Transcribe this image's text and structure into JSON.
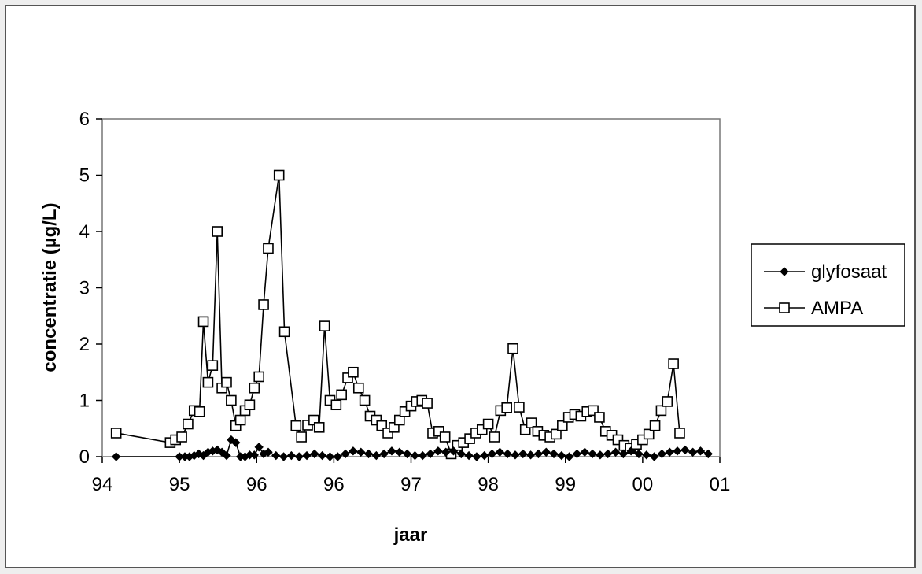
{
  "chart_data": {
    "type": "line",
    "xlabel": "jaar",
    "ylabel": "concentratie (µg/L)",
    "x_tick_labels": [
      "94",
      "95",
      "96",
      "96",
      "97",
      "98",
      "99",
      "00",
      "01"
    ],
    "y_ticks": [
      0,
      1,
      2,
      3,
      4,
      5,
      6
    ],
    "xlim": [
      0,
      8
    ],
    "ylim": [
      0,
      6
    ],
    "grid": false,
    "legend_position": "right",
    "series": [
      {
        "name": "glyfosaat",
        "marker": "diamond-filled",
        "color": "#000000",
        "points": [
          [
            0.18,
            0.0
          ],
          [
            1.0,
            0.0
          ],
          [
            1.07,
            0.0
          ],
          [
            1.13,
            0.0
          ],
          [
            1.19,
            0.02
          ],
          [
            1.25,
            0.05
          ],
          [
            1.31,
            0.02
          ],
          [
            1.37,
            0.08
          ],
          [
            1.43,
            0.1
          ],
          [
            1.49,
            0.12
          ],
          [
            1.55,
            0.08
          ],
          [
            1.61,
            0.02
          ],
          [
            1.67,
            0.3
          ],
          [
            1.73,
            0.25
          ],
          [
            1.79,
            0.0
          ],
          [
            1.85,
            0.0
          ],
          [
            1.91,
            0.03
          ],
          [
            1.97,
            0.03
          ],
          [
            2.03,
            0.17
          ],
          [
            2.09,
            0.05
          ],
          [
            2.15,
            0.08
          ],
          [
            2.25,
            0.02
          ],
          [
            2.35,
            0.0
          ],
          [
            2.45,
            0.02
          ],
          [
            2.55,
            0.0
          ],
          [
            2.65,
            0.02
          ],
          [
            2.75,
            0.05
          ],
          [
            2.85,
            0.02
          ],
          [
            2.95,
            0.0
          ],
          [
            3.05,
            0.0
          ],
          [
            3.15,
            0.05
          ],
          [
            3.25,
            0.1
          ],
          [
            3.35,
            0.08
          ],
          [
            3.45,
            0.05
          ],
          [
            3.55,
            0.02
          ],
          [
            3.65,
            0.05
          ],
          [
            3.75,
            0.1
          ],
          [
            3.85,
            0.08
          ],
          [
            3.95,
            0.05
          ],
          [
            4.05,
            0.02
          ],
          [
            4.15,
            0.02
          ],
          [
            4.25,
            0.05
          ],
          [
            4.35,
            0.1
          ],
          [
            4.45,
            0.08
          ],
          [
            4.55,
            0.1
          ],
          [
            4.65,
            0.05
          ],
          [
            4.75,
            0.02
          ],
          [
            4.85,
            0.0
          ],
          [
            4.95,
            0.02
          ],
          [
            5.05,
            0.05
          ],
          [
            5.15,
            0.08
          ],
          [
            5.25,
            0.05
          ],
          [
            5.35,
            0.03
          ],
          [
            5.45,
            0.05
          ],
          [
            5.55,
            0.03
          ],
          [
            5.65,
            0.05
          ],
          [
            5.75,
            0.08
          ],
          [
            5.85,
            0.05
          ],
          [
            5.95,
            0.02
          ],
          [
            6.05,
            0.0
          ],
          [
            6.15,
            0.05
          ],
          [
            6.25,
            0.08
          ],
          [
            6.35,
            0.05
          ],
          [
            6.45,
            0.03
          ],
          [
            6.55,
            0.05
          ],
          [
            6.65,
            0.08
          ],
          [
            6.75,
            0.05
          ],
          [
            6.85,
            0.1
          ],
          [
            6.95,
            0.05
          ],
          [
            7.05,
            0.03
          ],
          [
            7.15,
            0.0
          ],
          [
            7.25,
            0.05
          ],
          [
            7.35,
            0.08
          ],
          [
            7.45,
            0.1
          ],
          [
            7.55,
            0.12
          ],
          [
            7.65,
            0.08
          ],
          [
            7.75,
            0.1
          ],
          [
            7.85,
            0.05
          ]
        ]
      },
      {
        "name": "AMPA",
        "marker": "square-open",
        "color": "#000000",
        "points": [
          [
            0.18,
            0.42
          ],
          [
            0.88,
            0.25
          ],
          [
            0.95,
            0.3
          ],
          [
            1.03,
            0.35
          ],
          [
            1.11,
            0.58
          ],
          [
            1.19,
            0.82
          ],
          [
            1.26,
            0.8
          ],
          [
            1.31,
            2.4
          ],
          [
            1.37,
            1.32
          ],
          [
            1.43,
            1.62
          ],
          [
            1.49,
            4.0
          ],
          [
            1.55,
            1.22
          ],
          [
            1.61,
            1.32
          ],
          [
            1.67,
            1.0
          ],
          [
            1.73,
            0.55
          ],
          [
            1.79,
            0.65
          ],
          [
            1.85,
            0.82
          ],
          [
            1.91,
            0.92
          ],
          [
            1.97,
            1.22
          ],
          [
            2.03,
            1.42
          ],
          [
            2.09,
            2.7
          ],
          [
            2.15,
            3.7
          ],
          [
            2.29,
            5.0
          ],
          [
            2.36,
            2.22
          ],
          [
            2.51,
            0.55
          ],
          [
            2.58,
            0.35
          ],
          [
            2.66,
            0.56
          ],
          [
            2.74,
            0.65
          ],
          [
            2.81,
            0.52
          ],
          [
            2.88,
            2.32
          ],
          [
            2.95,
            1.0
          ],
          [
            3.03,
            0.92
          ],
          [
            3.1,
            1.1
          ],
          [
            3.18,
            1.4
          ],
          [
            3.25,
            1.5
          ],
          [
            3.32,
            1.22
          ],
          [
            3.4,
            1.0
          ],
          [
            3.47,
            0.72
          ],
          [
            3.55,
            0.65
          ],
          [
            3.62,
            0.55
          ],
          [
            3.7,
            0.42
          ],
          [
            3.78,
            0.52
          ],
          [
            3.85,
            0.65
          ],
          [
            3.92,
            0.8
          ],
          [
            4.0,
            0.9
          ],
          [
            4.07,
            0.98
          ],
          [
            4.14,
            1.0
          ],
          [
            4.21,
            0.95
          ],
          [
            4.28,
            0.42
          ],
          [
            4.36,
            0.45
          ],
          [
            4.44,
            0.35
          ],
          [
            4.52,
            0.05
          ],
          [
            4.6,
            0.2
          ],
          [
            4.68,
            0.25
          ],
          [
            4.76,
            0.32
          ],
          [
            4.84,
            0.42
          ],
          [
            4.92,
            0.48
          ],
          [
            5.0,
            0.58
          ],
          [
            5.08,
            0.35
          ],
          [
            5.16,
            0.82
          ],
          [
            5.24,
            0.87
          ],
          [
            5.32,
            1.92
          ],
          [
            5.4,
            0.88
          ],
          [
            5.48,
            0.48
          ],
          [
            5.56,
            0.6
          ],
          [
            5.64,
            0.45
          ],
          [
            5.72,
            0.38
          ],
          [
            5.8,
            0.35
          ],
          [
            5.88,
            0.4
          ],
          [
            5.96,
            0.55
          ],
          [
            6.04,
            0.7
          ],
          [
            6.12,
            0.75
          ],
          [
            6.2,
            0.72
          ],
          [
            6.28,
            0.8
          ],
          [
            6.36,
            0.82
          ],
          [
            6.44,
            0.7
          ],
          [
            6.52,
            0.45
          ],
          [
            6.6,
            0.38
          ],
          [
            6.68,
            0.3
          ],
          [
            6.76,
            0.2
          ],
          [
            6.84,
            0.15
          ],
          [
            6.92,
            0.22
          ],
          [
            7.0,
            0.3
          ],
          [
            7.08,
            0.4
          ],
          [
            7.16,
            0.55
          ],
          [
            7.24,
            0.82
          ],
          [
            7.32,
            0.98
          ],
          [
            7.4,
            1.65
          ],
          [
            7.48,
            0.42
          ]
        ]
      }
    ]
  }
}
